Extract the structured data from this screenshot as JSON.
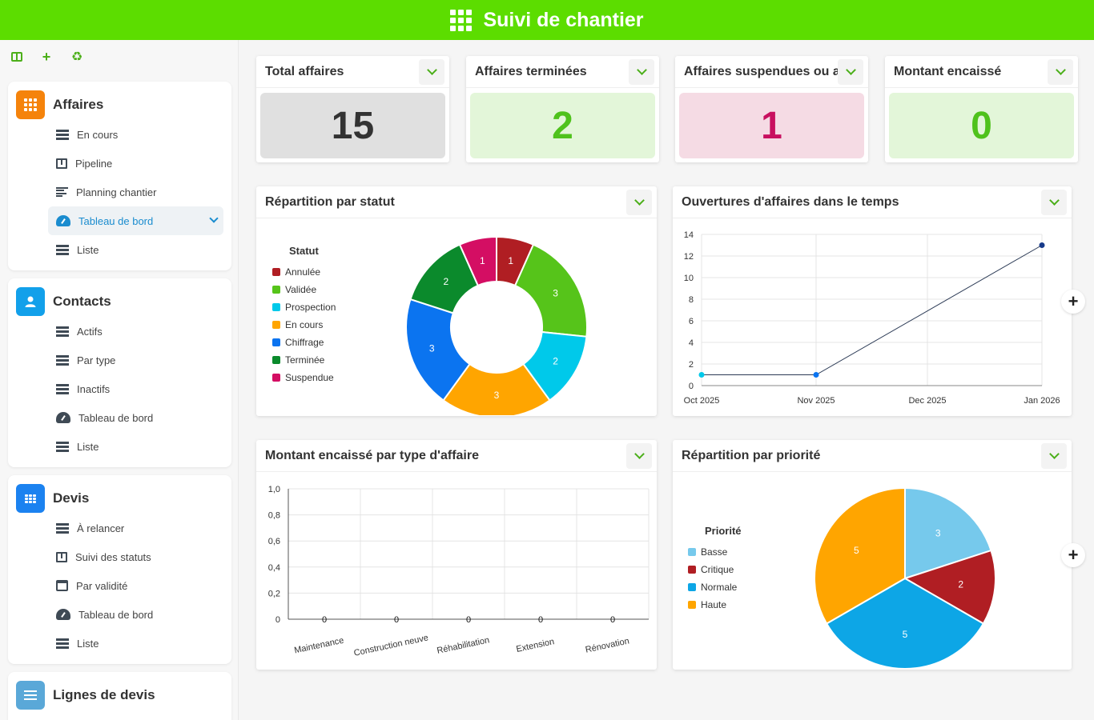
{
  "app": {
    "title": "Suivi de chantier"
  },
  "sidebar": {
    "sections": [
      {
        "title": "Affaires",
        "icon": "grid-icon",
        "color": "#f5830b",
        "items": [
          {
            "label": "En cours",
            "icon": "list-icon"
          },
          {
            "label": "Pipeline",
            "icon": "kanban-icon"
          },
          {
            "label": "Planning chantier",
            "icon": "gantt-icon"
          },
          {
            "label": "Tableau de bord",
            "icon": "dashboard-icon",
            "active": true
          },
          {
            "label": "Liste",
            "icon": "list-icon"
          }
        ]
      },
      {
        "title": "Contacts",
        "icon": "user-icon",
        "color": "#12a0ea",
        "items": [
          {
            "label": "Actifs",
            "icon": "list-icon"
          },
          {
            "label": "Par type",
            "icon": "list-icon"
          },
          {
            "label": "Inactifs",
            "icon": "list-icon"
          },
          {
            "label": "Tableau de bord",
            "icon": "dashboard-icon"
          },
          {
            "label": "Liste",
            "icon": "list-icon"
          }
        ]
      },
      {
        "title": "Devis",
        "icon": "table-icon",
        "color": "#1b82f0",
        "items": [
          {
            "label": "À relancer",
            "icon": "list-icon"
          },
          {
            "label": "Suivi des statuts",
            "icon": "kanban-icon"
          },
          {
            "label": "Par validité",
            "icon": "calendar-icon"
          },
          {
            "label": "Tableau de bord",
            "icon": "dashboard-icon"
          },
          {
            "label": "Liste",
            "icon": "list-icon"
          }
        ]
      },
      {
        "title": "Lignes de devis",
        "icon": "lines-icon",
        "color": "#5aa8d8",
        "items": []
      }
    ]
  },
  "kpis": [
    {
      "label": "Total affaires",
      "value": "15",
      "bg": "#e0e0e0",
      "fg": "#333333"
    },
    {
      "label": "Affaires terminées",
      "value": "2",
      "bg": "#e3f6d9",
      "fg": "#4fc21c"
    },
    {
      "label": "Affaires suspendues ou a",
      "value": "1",
      "bg": "#f5dbe4",
      "fg": "#c8105f"
    },
    {
      "label": "Montant encaissé",
      "value": "0",
      "bg": "#e3f6d9",
      "fg": "#4fc21c"
    }
  ],
  "charts": {
    "statut": {
      "title": "Répartition par statut",
      "chart_data": {
        "type": "pie",
        "legend_title": "Statut",
        "labels": [
          "Annulée",
          "Validée",
          "Prospection",
          "En cours",
          "Chiffrage",
          "Terminée",
          "Suspendue"
        ],
        "values": [
          1,
          3,
          2,
          3,
          3,
          2,
          1
        ],
        "colors": [
          "#b01e23",
          "#56c41a",
          "#00c9ea",
          "#ffa500",
          "#0b74f0",
          "#0b8a2c",
          "#d40e63"
        ],
        "donut": true,
        "legend_position": "left"
      }
    },
    "ouvertures": {
      "title": "Ouvertures d'affaires dans le temps",
      "chart_data": {
        "type": "line",
        "x": [
          "Oct 2025",
          "Nov 2025",
          "Jan 2026"
        ],
        "y": [
          1,
          1,
          13
        ],
        "x_ticks": [
          "Oct 2025",
          "Nov 2025",
          "Dec 2025",
          "Jan 2026"
        ],
        "y_ticks": [
          "0",
          "2",
          "4",
          "6",
          "8",
          "10",
          "12",
          "14"
        ],
        "ylim": [
          0,
          14
        ],
        "grid": true
      }
    },
    "montant": {
      "title": "Montant encaissé par type d'affaire",
      "chart_data": {
        "type": "bar",
        "categories": [
          "Maintenance",
          "Construction neuve",
          "Réhabilitation",
          "Extension",
          "Rénovation"
        ],
        "values": [
          0,
          0,
          0,
          0,
          0
        ],
        "value_labels": [
          "0",
          "0",
          "0",
          "0",
          "0"
        ],
        "y_ticks": [
          "0",
          "0,2",
          "0,4",
          "0,6",
          "0,8",
          "1,0"
        ],
        "ylim": [
          0,
          1
        ],
        "grid": true
      }
    },
    "priorite": {
      "title": "Répartition par priorité",
      "chart_data": {
        "type": "pie",
        "legend_title": "Priorité",
        "labels": [
          "Basse",
          "Critique",
          "Normale",
          "Haute"
        ],
        "values": [
          3,
          2,
          5,
          5
        ],
        "colors": [
          "#76c9ec",
          "#b01e23",
          "#0da6e6",
          "#ffa500"
        ],
        "legend_position": "left"
      }
    }
  }
}
